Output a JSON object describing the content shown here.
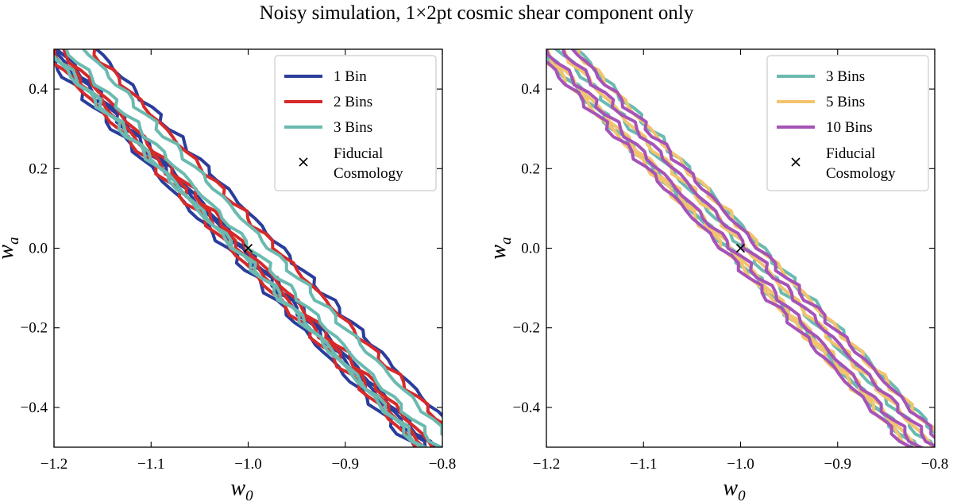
{
  "figure": {
    "title": "Noisy simulation, 1×2pt cosmic shear component only"
  },
  "chart_data": [
    {
      "type": "contour",
      "xlabel": "w",
      "xlabel_sub": "0",
      "ylabel": "w",
      "ylabel_sub": "a",
      "xlim": [
        -1.2,
        -0.8
      ],
      "ylim": [
        -0.5,
        0.5
      ],
      "xticks": [
        -1.2,
        -1.1,
        -1.0,
        -0.9,
        -0.8
      ],
      "yticks": [
        -0.4,
        -0.2,
        0.0,
        0.2,
        0.4
      ],
      "xtick_labels": [
        "−1.2",
        "−1.1",
        "−1.0",
        "−0.9",
        "−0.8"
      ],
      "ytick_labels": [
        "−0.4",
        "−0.2",
        "0.0",
        "0.2",
        "0.4"
      ],
      "grid": false,
      "legend_position": "top-right",
      "series": [
        {
          "name": "1 Bin",
          "color": "#2b3d9b",
          "offsets": [
            -0.013,
            0.013
          ],
          "widths": [
            0.009,
            0.021
          ],
          "spread": 1.02
        },
        {
          "name": "2 Bins",
          "color": "#d62a2a",
          "offsets": [
            -0.01,
            0.01
          ],
          "widths": [
            0.008,
            0.019
          ],
          "spread": 1.0
        },
        {
          "name": "3 Bins",
          "color": "#6bbab0",
          "offsets": [
            -0.004,
            0.004
          ],
          "widths": [
            0.008,
            0.019
          ],
          "spread": 0.97
        }
      ],
      "marker": {
        "name": "Fiducial Cosmology",
        "legend_line1": "Fiducial",
        "legend_line2": "Cosmology",
        "x": -1.0,
        "y": 0.0,
        "symbol": "×"
      }
    },
    {
      "type": "contour",
      "xlabel": "w",
      "xlabel_sub": "0",
      "ylabel": "w",
      "ylabel_sub": "a",
      "xlim": [
        -1.2,
        -0.8
      ],
      "ylim": [
        -0.5,
        0.5
      ],
      "xticks": [
        -1.2,
        -1.1,
        -1.0,
        -0.9,
        -0.8
      ],
      "yticks": [
        -0.4,
        -0.2,
        0.0,
        0.2,
        0.4
      ],
      "xtick_labels": [
        "−1.2",
        "−1.1",
        "−1.0",
        "−0.9",
        "−0.8"
      ],
      "ytick_labels": [
        "−0.4",
        "−0.2",
        "0.0",
        "0.2",
        "0.4"
      ],
      "grid": false,
      "legend_position": "top-right",
      "series": [
        {
          "name": "3 Bins",
          "color": "#6bbab0",
          "offsets": [
            -0.004,
            0.004
          ],
          "widths": [
            0.008,
            0.019
          ],
          "spread": 0.97
        },
        {
          "name": "5 Bins",
          "color": "#f2c46d",
          "offsets": [
            -0.002,
            0.002
          ],
          "widths": [
            0.008,
            0.019
          ],
          "spread": 0.99
        },
        {
          "name": "10 Bins",
          "color": "#a653b8",
          "offsets": [
            0.0,
            0.0
          ],
          "widths": [
            0.008,
            0.019
          ],
          "spread": 1.0
        }
      ],
      "marker": {
        "name": "Fiducial Cosmology",
        "legend_line1": "Fiducial",
        "legend_line2": "Cosmology",
        "x": -1.0,
        "y": 0.0,
        "symbol": "×"
      }
    }
  ]
}
